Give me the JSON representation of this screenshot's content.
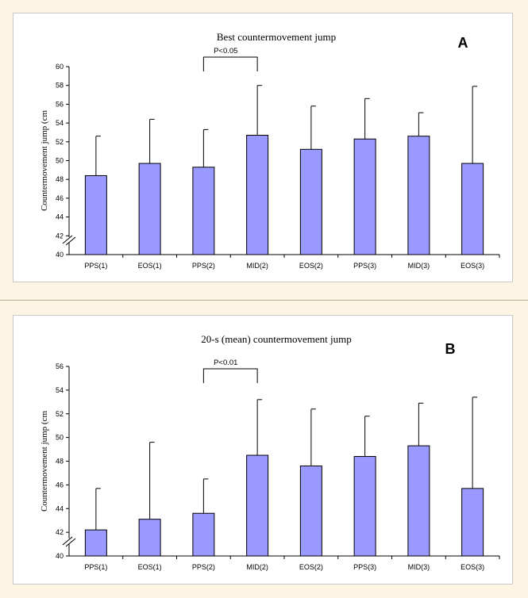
{
  "chart_data": [
    {
      "type": "bar",
      "panel_label": "A",
      "title": "Best countermovement jump",
      "ylabel": "Countermovement jump (cm",
      "xlabel": "",
      "categories": [
        "PPS(1)",
        "EOS(1)",
        "PPS(2)",
        "MID(2)",
        "EOS(2)",
        "PPS(3)",
        "MID(3)",
        "EOS(3)"
      ],
      "values": [
        48.4,
        49.7,
        49.3,
        52.7,
        51.2,
        52.3,
        52.6,
        49.7
      ],
      "error_upper": [
        52.6,
        54.4,
        53.3,
        58.0,
        55.8,
        56.6,
        55.1,
        57.9
      ],
      "ylim": [
        40,
        60
      ],
      "yticks": [
        40,
        42,
        44,
        46,
        48,
        50,
        52,
        54,
        56,
        58,
        60
      ],
      "axis_break": true,
      "grid": false,
      "bar_color": "#9999ff",
      "annotation": {
        "text": "P<0.05",
        "from": "PPS(2)",
        "to": "MID(2)"
      }
    },
    {
      "type": "bar",
      "panel_label": "B",
      "title": "20-s (mean) countermovement jump",
      "ylabel": "Countermovement jump (cm",
      "xlabel": "",
      "categories": [
        "PPS(1)",
        "EOS(1)",
        "PPS(2)",
        "MID(2)",
        "EOS(2)",
        "PPS(3)",
        "MID(3)",
        "EOS(3)"
      ],
      "values": [
        42.2,
        43.1,
        43.6,
        48.5,
        47.6,
        48.4,
        49.3,
        45.7
      ],
      "error_upper": [
        45.7,
        49.6,
        46.5,
        53.2,
        52.4,
        51.8,
        52.9,
        53.4
      ],
      "ylim": [
        40,
        56
      ],
      "yticks": [
        40,
        42,
        44,
        46,
        48,
        50,
        52,
        54,
        56
      ],
      "axis_break": true,
      "grid": false,
      "bar_color": "#9999ff",
      "annotation": {
        "text": "P<0.01",
        "from": "PPS(2)",
        "to": "MID(2)"
      }
    }
  ]
}
